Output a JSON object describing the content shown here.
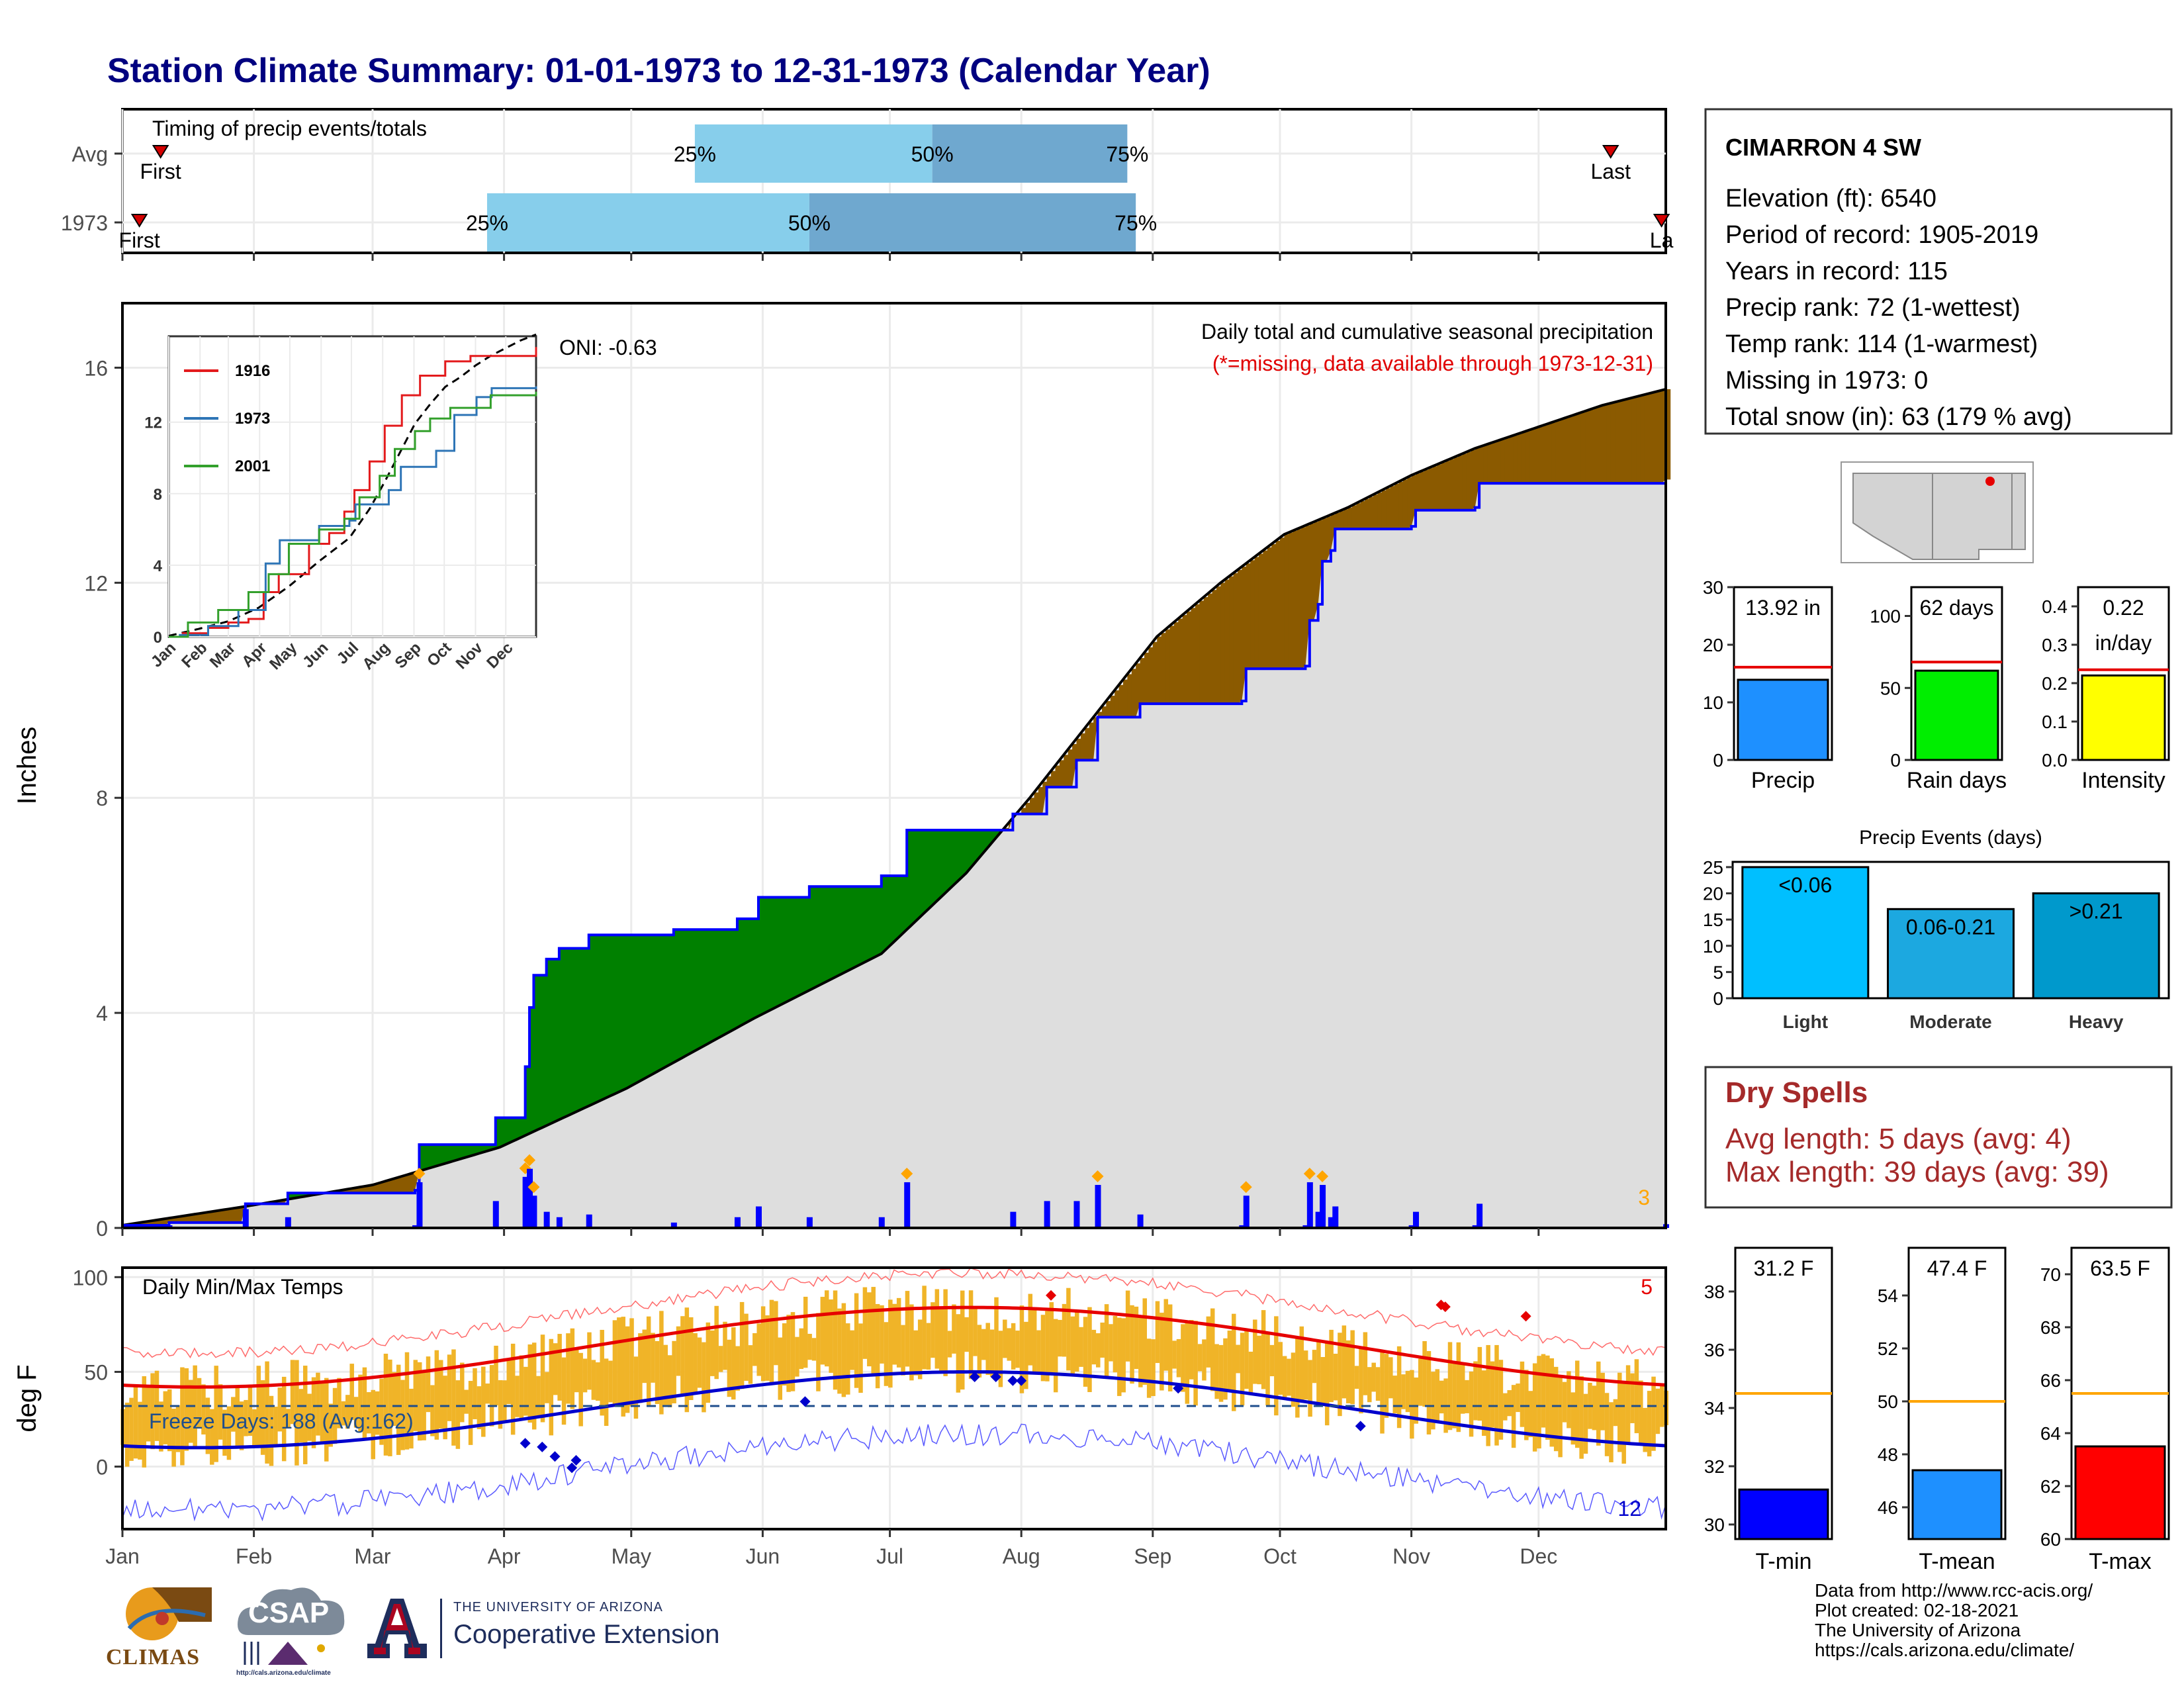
{
  "page": {
    "title": "Station Climate Summary: 01-01-1973 to 12-31-1973 (Calendar Year)",
    "months": [
      "Jan",
      "Feb",
      "Mar",
      "Apr",
      "May",
      "Jun",
      "Jul",
      "Aug",
      "Sep",
      "Oct",
      "Nov",
      "Dec"
    ]
  },
  "timing": {
    "label": "Timing of precip events/totals",
    "rows": [
      {
        "name": "Avg",
        "first_label": "First",
        "last_label": "Last",
        "first_doy": 10,
        "last_doy": 352,
        "p25_doy": 136,
        "p50_doy": 192,
        "p75_doy": 238
      },
      {
        "name": "1973",
        "first_label": "First",
        "last_label": "La",
        "first_doy": 5,
        "last_doy": 364,
        "p25_doy": 87,
        "p50_doy": 163,
        "p75_doy": 240
      }
    ],
    "pct_labels": [
      "25%",
      "50%",
      "75%"
    ]
  },
  "station": {
    "name": "CIMARRON 4 SW",
    "lines": [
      "Elevation (ft): 6540",
      "Period of record: 1905-2019",
      "Years in record: 115",
      "Precip rank: 72 (1-wettest)",
      "Temp rank: 114 (1-warmest)",
      "Missing in 1973: 0",
      "Total snow (in): 63 (179 % avg)"
    ]
  },
  "precip_panel": {
    "ylabel": "Inches",
    "yticks": [
      0,
      4,
      8,
      12,
      16
    ],
    "ylim": [
      0,
      17.2
    ],
    "note1": "Daily total and cumulative seasonal precipitation",
    "note2": "(*=missing, data available through 1973-12-31)",
    "oni": "ONI: -0.63",
    "corner_count": "3"
  },
  "inset": {
    "years": [
      "1916",
      "1973",
      "2001"
    ],
    "colors": [
      "#e31a1c",
      "#2e75b6",
      "#33a02c"
    ],
    "yticks": [
      0,
      4,
      8,
      12
    ],
    "months": [
      "Jan",
      "Feb",
      "Mar",
      "Apr",
      "May",
      "Jun",
      "Jul",
      "Aug",
      "Sep",
      "Oct",
      "Nov",
      "Dec"
    ]
  },
  "mini_bars": [
    {
      "label": "Precip",
      "value_text": "13.92 in",
      "value": 13.92,
      "avg": 16.1,
      "ymax": 30,
      "yticks": [
        0,
        10,
        20,
        30
      ],
      "color": "#1e90ff"
    },
    {
      "label": "Rain days",
      "value_text": "62 days",
      "value": 62,
      "avg": 68,
      "ymax": 120,
      "yticks": [
        0,
        50,
        100
      ],
      "color": "#00ee00"
    },
    {
      "label": "Intensity",
      "value_text": "0.22",
      "value_text2": "in/day",
      "value": 0.22,
      "avg": 0.235,
      "ymax": 0.45,
      "yticks": [
        "0.0",
        "0.1",
        "0.2",
        "0.3",
        "0.4"
      ],
      "color": "#ffff00"
    }
  ],
  "events": {
    "title": "Precip Events (days)",
    "categories": [
      "Light",
      "Moderate",
      "Heavy"
    ],
    "labels": [
      "<0.06",
      "0.06-0.21",
      ">0.21"
    ],
    "values": [
      25,
      17,
      20
    ],
    "yticks": [
      0,
      5,
      10,
      15,
      20,
      25
    ],
    "colors": [
      "#00bfff",
      "#1ca8e0",
      "#0099cc"
    ]
  },
  "dry_spells": {
    "title": "Dry Spells",
    "line1": "Avg length: 5 days (avg: 4)",
    "line2": "Max length: 39 days (avg: 39)"
  },
  "temp_panel": {
    "label": "Daily Min/Max Temps",
    "ylabel": "deg F",
    "yticks": [
      0,
      50,
      100
    ],
    "freeze": "Freeze Days: 188 (Avg:162)",
    "freeze_line": 32,
    "count_hot": "5",
    "count_cold": "12"
  },
  "temp_bars": [
    {
      "label": "T-min",
      "value_text": "31.2 F",
      "value": 31.2,
      "avg": 34.5,
      "ymin": 29.5,
      "ymax": 39.5,
      "yticks": [
        30,
        32,
        34,
        36,
        38
      ],
      "color": "#0000ff"
    },
    {
      "label": "T-mean",
      "value_text": "47.4 F",
      "value": 47.4,
      "avg": 50.0,
      "ymin": 44.8,
      "ymax": 55.8,
      "yticks": [
        46,
        48,
        50,
        52,
        54
      ],
      "color": "#1e90ff"
    },
    {
      "label": "T-max",
      "value_text": "63.5 F",
      "value": 63.5,
      "avg": 65.5,
      "ymin": 60,
      "ymax": 71,
      "yticks": [
        60,
        62,
        64,
        66,
        68,
        70
      ],
      "color": "#ff0000"
    }
  ],
  "credits": [
    "Data from http://www.rcc-acis.org/",
    "Plot created: 02-18-2021",
    "The University of Arizona",
    "https://cals.arizona.edu/climate/"
  ],
  "logos": {
    "climas": "CLIMAS",
    "csap": "CSAP",
    "csap_url": "http://cals.arizona.edu/climate",
    "ua_small": "THE UNIVERSITY OF ARIZONA",
    "ua_big": "Cooperative Extension"
  },
  "chart_data": {
    "type": "area",
    "title": "Station Climate Summary: 01-01-1973 to 12-31-1973 (Calendar Year)",
    "ylabel": "Inches",
    "ylim": [
      0,
      17.2
    ],
    "series": [
      {
        "name": "1973",
        "points": [
          [
            1,
            0.05
          ],
          [
            12,
            0.1
          ],
          [
            30,
            0.45
          ],
          [
            40,
            0.65
          ],
          [
            70,
            0.7
          ],
          [
            71,
            1.55
          ],
          [
            88,
            1.55
          ],
          [
            89,
            2.05
          ],
          [
            95,
            2.05
          ],
          [
            96,
            3.0
          ],
          [
            97,
            4.1
          ],
          [
            98,
            4.7
          ],
          [
            101,
            5.0
          ],
          [
            104,
            5.2
          ],
          [
            110,
            5.2
          ],
          [
            111,
            5.45
          ],
          [
            130,
            5.45
          ],
          [
            131,
            5.55
          ],
          [
            145,
            5.55
          ],
          [
            146,
            5.75
          ],
          [
            150,
            5.75
          ],
          [
            151,
            6.15
          ],
          [
            162,
            6.15
          ],
          [
            163,
            6.35
          ],
          [
            179,
            6.35
          ],
          [
            180,
            6.55
          ],
          [
            185,
            6.55
          ],
          [
            186,
            7.4
          ],
          [
            210,
            7.4
          ],
          [
            211,
            7.7
          ],
          [
            218,
            7.7
          ],
          [
            219,
            8.2
          ],
          [
            225,
            8.2
          ],
          [
            226,
            8.7
          ],
          [
            230,
            8.7
          ],
          [
            231,
            9.5
          ],
          [
            240,
            9.5
          ],
          [
            241,
            9.75
          ],
          [
            265,
            9.8
          ],
          [
            266,
            10.4
          ],
          [
            280,
            10.45
          ],
          [
            281,
            11.3
          ],
          [
            283,
            11.6
          ],
          [
            284,
            12.4
          ],
          [
            286,
            12.6
          ],
          [
            287,
            13.0
          ],
          [
            305,
            13.05
          ],
          [
            306,
            13.35
          ],
          [
            320,
            13.4
          ],
          [
            321,
            13.85
          ],
          [
            365,
            13.92
          ]
        ]
      },
      {
        "name": "Average",
        "points": [
          [
            1,
            0.05
          ],
          [
            30,
            0.4
          ],
          [
            60,
            0.8
          ],
          [
            90,
            1.5
          ],
          [
            120,
            2.6
          ],
          [
            150,
            3.9
          ],
          [
            180,
            5.1
          ],
          [
            200,
            6.6
          ],
          [
            215,
            8.0
          ],
          [
            230,
            9.5
          ],
          [
            245,
            11.0
          ],
          [
            260,
            12.0
          ],
          [
            275,
            12.9
          ],
          [
            290,
            13.4
          ],
          [
            305,
            14.0
          ],
          [
            320,
            14.5
          ],
          [
            335,
            14.9
          ],
          [
            350,
            15.3
          ],
          [
            365,
            15.6
          ]
        ]
      }
    ]
  }
}
